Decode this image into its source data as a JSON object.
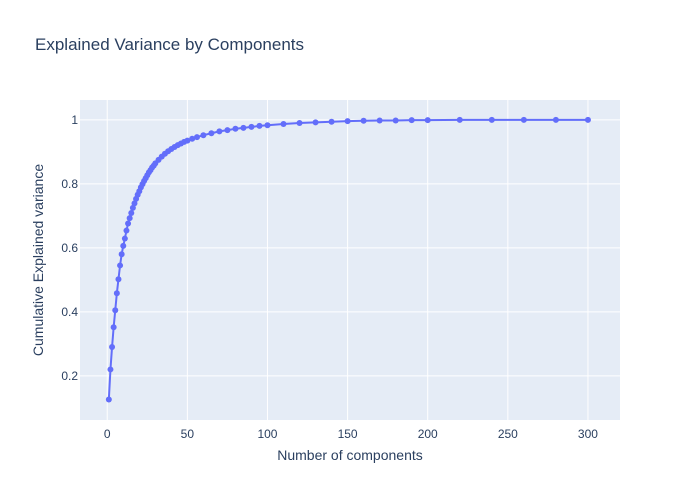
{
  "chart_data": {
    "type": "line",
    "title": "Explained Variance by Components",
    "xlabel": "Number of components",
    "ylabel": "Cumulative Explained variance",
    "xlim": [
      -17,
      320
    ],
    "ylim": [
      0.062,
      1.062
    ],
    "x_ticks": [
      0,
      50,
      100,
      150,
      200,
      250,
      300
    ],
    "x_tick_labels": [
      "0",
      "50",
      "100",
      "150",
      "200",
      "250",
      "300"
    ],
    "y_ticks": [
      0.2,
      0.4,
      0.6,
      0.8,
      1
    ],
    "y_tick_labels": [
      "0.2",
      "0.4",
      "0.6",
      "0.8",
      "1"
    ],
    "grid": true,
    "legend": "none",
    "colors": {
      "plot_background": "#E5ECF6",
      "grid": "#ffffff",
      "series": "#636EFA",
      "text": "#2a3f5f"
    },
    "series": [
      {
        "x": [
          1,
          2,
          3,
          4,
          5,
          6,
          7,
          8,
          9,
          10,
          11,
          12,
          13,
          14,
          15,
          16,
          17,
          18,
          19,
          20,
          21,
          22,
          23,
          24,
          25,
          26,
          27,
          28,
          29,
          30,
          32,
          34,
          36,
          38,
          40,
          42,
          44,
          46,
          48,
          50,
          53,
          56,
          60,
          65,
          70,
          75,
          80,
          85,
          90,
          95,
          100,
          110,
          120,
          130,
          140,
          150,
          160,
          170,
          180,
          190,
          200,
          220,
          240,
          260,
          280,
          300
        ],
        "y": [
          0.126,
          0.22,
          0.29,
          0.352,
          0.405,
          0.458,
          0.502,
          0.545,
          0.58,
          0.606,
          0.629,
          0.654,
          0.676,
          0.693,
          0.709,
          0.725,
          0.739,
          0.753,
          0.766,
          0.777,
          0.789,
          0.799,
          0.809,
          0.818,
          0.827,
          0.836,
          0.843,
          0.851,
          0.857,
          0.864,
          0.875,
          0.885,
          0.894,
          0.902,
          0.909,
          0.915,
          0.921,
          0.926,
          0.931,
          0.935,
          0.941,
          0.946,
          0.952,
          0.958,
          0.964,
          0.968,
          0.972,
          0.975,
          0.978,
          0.981,
          0.983,
          0.987,
          0.99,
          0.992,
          0.994,
          0.996,
          0.997,
          0.998,
          0.998,
          0.999,
          0.999,
          1.0,
          1.0,
          1.0,
          1.0,
          1.0
        ]
      }
    ]
  }
}
